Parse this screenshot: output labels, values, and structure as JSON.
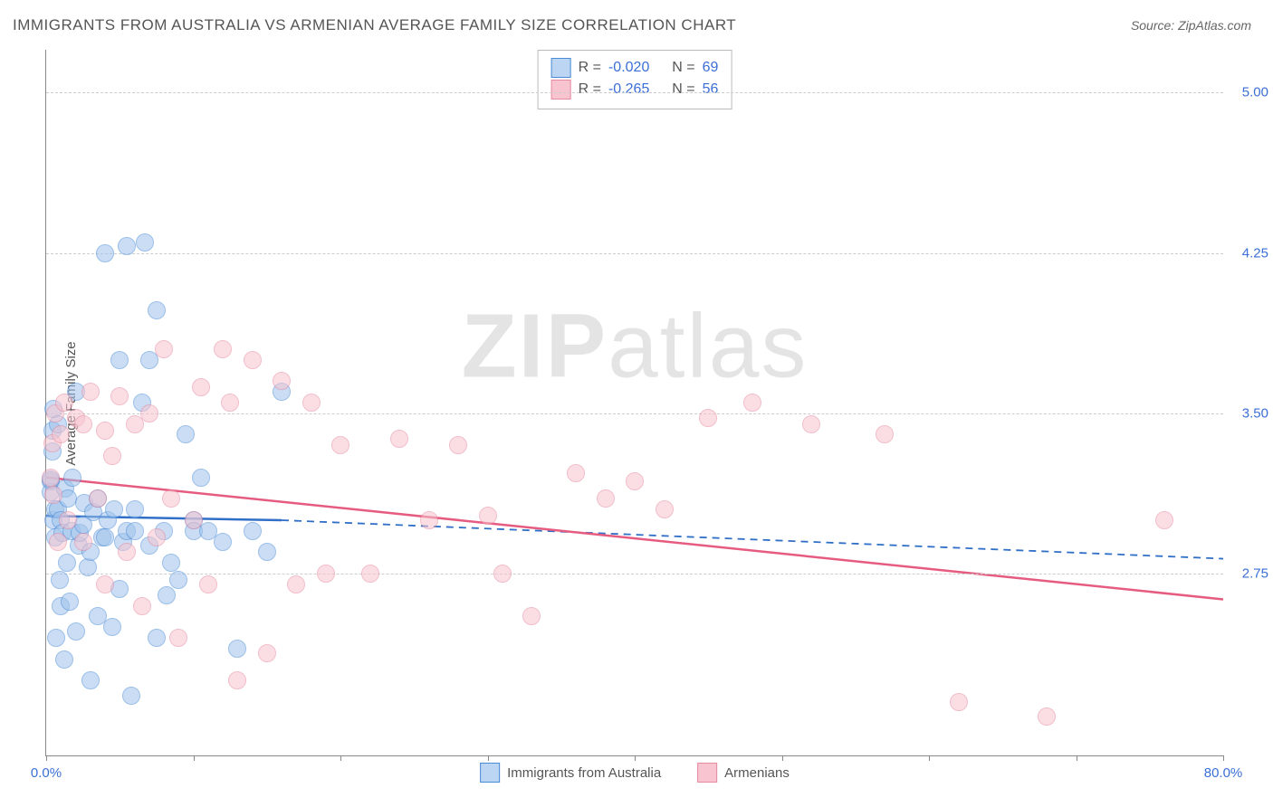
{
  "title": "IMMIGRANTS FROM AUSTRALIA VS ARMENIAN AVERAGE FAMILY SIZE CORRELATION CHART",
  "source": "Source: ZipAtlas.com",
  "ylabel": "Average Family Size",
  "watermark_pre": "ZIP",
  "watermark_post": "atlas",
  "chart": {
    "type": "scatter",
    "xlim": [
      0,
      80
    ],
    "ylim": [
      1.9,
      5.2
    ],
    "x_min_label": "0.0%",
    "x_max_label": "80.0%",
    "x_tick_positions": [
      0,
      10,
      20,
      30,
      40,
      50,
      60,
      70,
      80
    ],
    "y_ticks": [
      2.75,
      3.5,
      4.25,
      5.0
    ],
    "y_tick_labels": [
      "2.75",
      "3.50",
      "4.25",
      "5.00"
    ],
    "background_color": "#ffffff",
    "grid_color": "#cccccc",
    "axis_color": "#888888",
    "tick_label_color": "#3b6fd6",
    "point_radius": 9,
    "point_opacity": 0.55,
    "series": [
      {
        "name": "Immigrants from Australia",
        "color_fill": "#9fc3ec",
        "color_stroke": "#4a8bd6",
        "R": "-0.020",
        "N": "69",
        "trend": {
          "x0": 0,
          "y0": 3.02,
          "x1_solid": 16,
          "y1_solid": 3.0,
          "x1_dash": 80,
          "y1_dash": 2.82,
          "stroke": "#2f6fc7",
          "width": 2.5
        },
        "points": [
          [
            0.3,
            3.18
          ],
          [
            0.3,
            3.13
          ],
          [
            0.3,
            3.19
          ],
          [
            0.4,
            3.42
          ],
          [
            0.4,
            3.32
          ],
          [
            0.5,
            3.52
          ],
          [
            0.5,
            3.0
          ],
          [
            0.6,
            2.92
          ],
          [
            0.6,
            3.05
          ],
          [
            0.7,
            2.45
          ],
          [
            0.8,
            3.45
          ],
          [
            0.8,
            3.05
          ],
          [
            0.9,
            2.72
          ],
          [
            1.0,
            2.6
          ],
          [
            1.0,
            3.0
          ],
          [
            1.1,
            2.94
          ],
          [
            1.2,
            2.35
          ],
          [
            1.3,
            3.15
          ],
          [
            1.4,
            2.8
          ],
          [
            1.5,
            3.1
          ],
          [
            1.6,
            2.62
          ],
          [
            1.7,
            2.95
          ],
          [
            1.8,
            3.2
          ],
          [
            2.0,
            2.48
          ],
          [
            2.0,
            3.6
          ],
          [
            2.2,
            2.88
          ],
          [
            2.3,
            2.94
          ],
          [
            2.5,
            2.98
          ],
          [
            2.6,
            3.08
          ],
          [
            2.8,
            2.78
          ],
          [
            3.0,
            2.85
          ],
          [
            3.0,
            2.25
          ],
          [
            3.2,
            3.04
          ],
          [
            3.5,
            3.1
          ],
          [
            3.5,
            2.55
          ],
          [
            3.8,
            2.92
          ],
          [
            4.0,
            4.25
          ],
          [
            4.0,
            2.92
          ],
          [
            4.2,
            3.0
          ],
          [
            4.5,
            2.5
          ],
          [
            4.6,
            3.05
          ],
          [
            5.0,
            3.75
          ],
          [
            5.0,
            2.68
          ],
          [
            5.2,
            2.9
          ],
          [
            5.5,
            4.28
          ],
          [
            5.5,
            2.95
          ],
          [
            5.8,
            2.18
          ],
          [
            6.0,
            3.05
          ],
          [
            6.0,
            2.95
          ],
          [
            6.5,
            3.55
          ],
          [
            6.7,
            4.3
          ],
          [
            7.0,
            3.75
          ],
          [
            7.0,
            2.88
          ],
          [
            7.5,
            2.45
          ],
          [
            7.5,
            3.98
          ],
          [
            8.0,
            2.95
          ],
          [
            8.2,
            2.65
          ],
          [
            8.5,
            2.8
          ],
          [
            9.0,
            2.72
          ],
          [
            9.5,
            3.4
          ],
          [
            10.0,
            3.0
          ],
          [
            10.0,
            2.95
          ],
          [
            10.5,
            3.2
          ],
          [
            11.0,
            2.95
          ],
          [
            12.0,
            2.9
          ],
          [
            13.0,
            2.4
          ],
          [
            14.0,
            2.95
          ],
          [
            15.0,
            2.85
          ],
          [
            16.0,
            3.6
          ]
        ]
      },
      {
        "name": "Armenians",
        "color_fill": "#f7c4cf",
        "color_stroke": "#e68aa0",
        "R": "-0.265",
        "N": "56",
        "trend": {
          "x0": 0,
          "y0": 3.2,
          "x1_solid": 80,
          "y1_solid": 2.63,
          "stroke": "#e65c80",
          "width": 2.5
        },
        "points": [
          [
            0.3,
            3.2
          ],
          [
            0.4,
            3.36
          ],
          [
            0.5,
            3.12
          ],
          [
            0.6,
            3.5
          ],
          [
            0.8,
            2.9
          ],
          [
            1.0,
            3.4
          ],
          [
            1.2,
            3.55
          ],
          [
            1.5,
            3.0
          ],
          [
            2.0,
            3.48
          ],
          [
            2.5,
            2.9
          ],
          [
            2.5,
            3.45
          ],
          [
            3.0,
            3.6
          ],
          [
            3.5,
            3.1
          ],
          [
            4.0,
            2.7
          ],
          [
            4.0,
            3.42
          ],
          [
            4.5,
            3.3
          ],
          [
            5.0,
            3.58
          ],
          [
            5.5,
            2.85
          ],
          [
            6.0,
            3.45
          ],
          [
            6.5,
            2.6
          ],
          [
            7.0,
            3.5
          ],
          [
            7.5,
            2.92
          ],
          [
            8.0,
            3.8
          ],
          [
            8.5,
            3.1
          ],
          [
            9.0,
            2.45
          ],
          [
            10.0,
            3.0
          ],
          [
            10.5,
            3.62
          ],
          [
            11.0,
            2.7
          ],
          [
            12.0,
            3.8
          ],
          [
            12.5,
            3.55
          ],
          [
            13.0,
            2.25
          ],
          [
            14.0,
            3.75
          ],
          [
            15.0,
            2.38
          ],
          [
            16.0,
            3.65
          ],
          [
            17.0,
            2.7
          ],
          [
            18.0,
            3.55
          ],
          [
            19.0,
            2.75
          ],
          [
            20.0,
            3.35
          ],
          [
            22.0,
            2.75
          ],
          [
            24.0,
            3.38
          ],
          [
            26.0,
            3.0
          ],
          [
            28.0,
            3.35
          ],
          [
            30.0,
            3.02
          ],
          [
            31.0,
            2.75
          ],
          [
            33.0,
            2.55
          ],
          [
            36.0,
            3.22
          ],
          [
            38.0,
            3.1
          ],
          [
            40.0,
            3.18
          ],
          [
            42.0,
            3.05
          ],
          [
            45.0,
            3.48
          ],
          [
            48.0,
            3.55
          ],
          [
            52.0,
            3.45
          ],
          [
            57.0,
            3.4
          ],
          [
            62.0,
            2.15
          ],
          [
            68.0,
            2.08
          ],
          [
            76.0,
            3.0
          ]
        ]
      }
    ],
    "legend_bottom": [
      {
        "swatch": "blue",
        "label": "Immigrants from Australia"
      },
      {
        "swatch": "pink",
        "label": "Armenians"
      }
    ],
    "stats_labels": {
      "R_prefix": "R =",
      "N_prefix": "N ="
    }
  }
}
